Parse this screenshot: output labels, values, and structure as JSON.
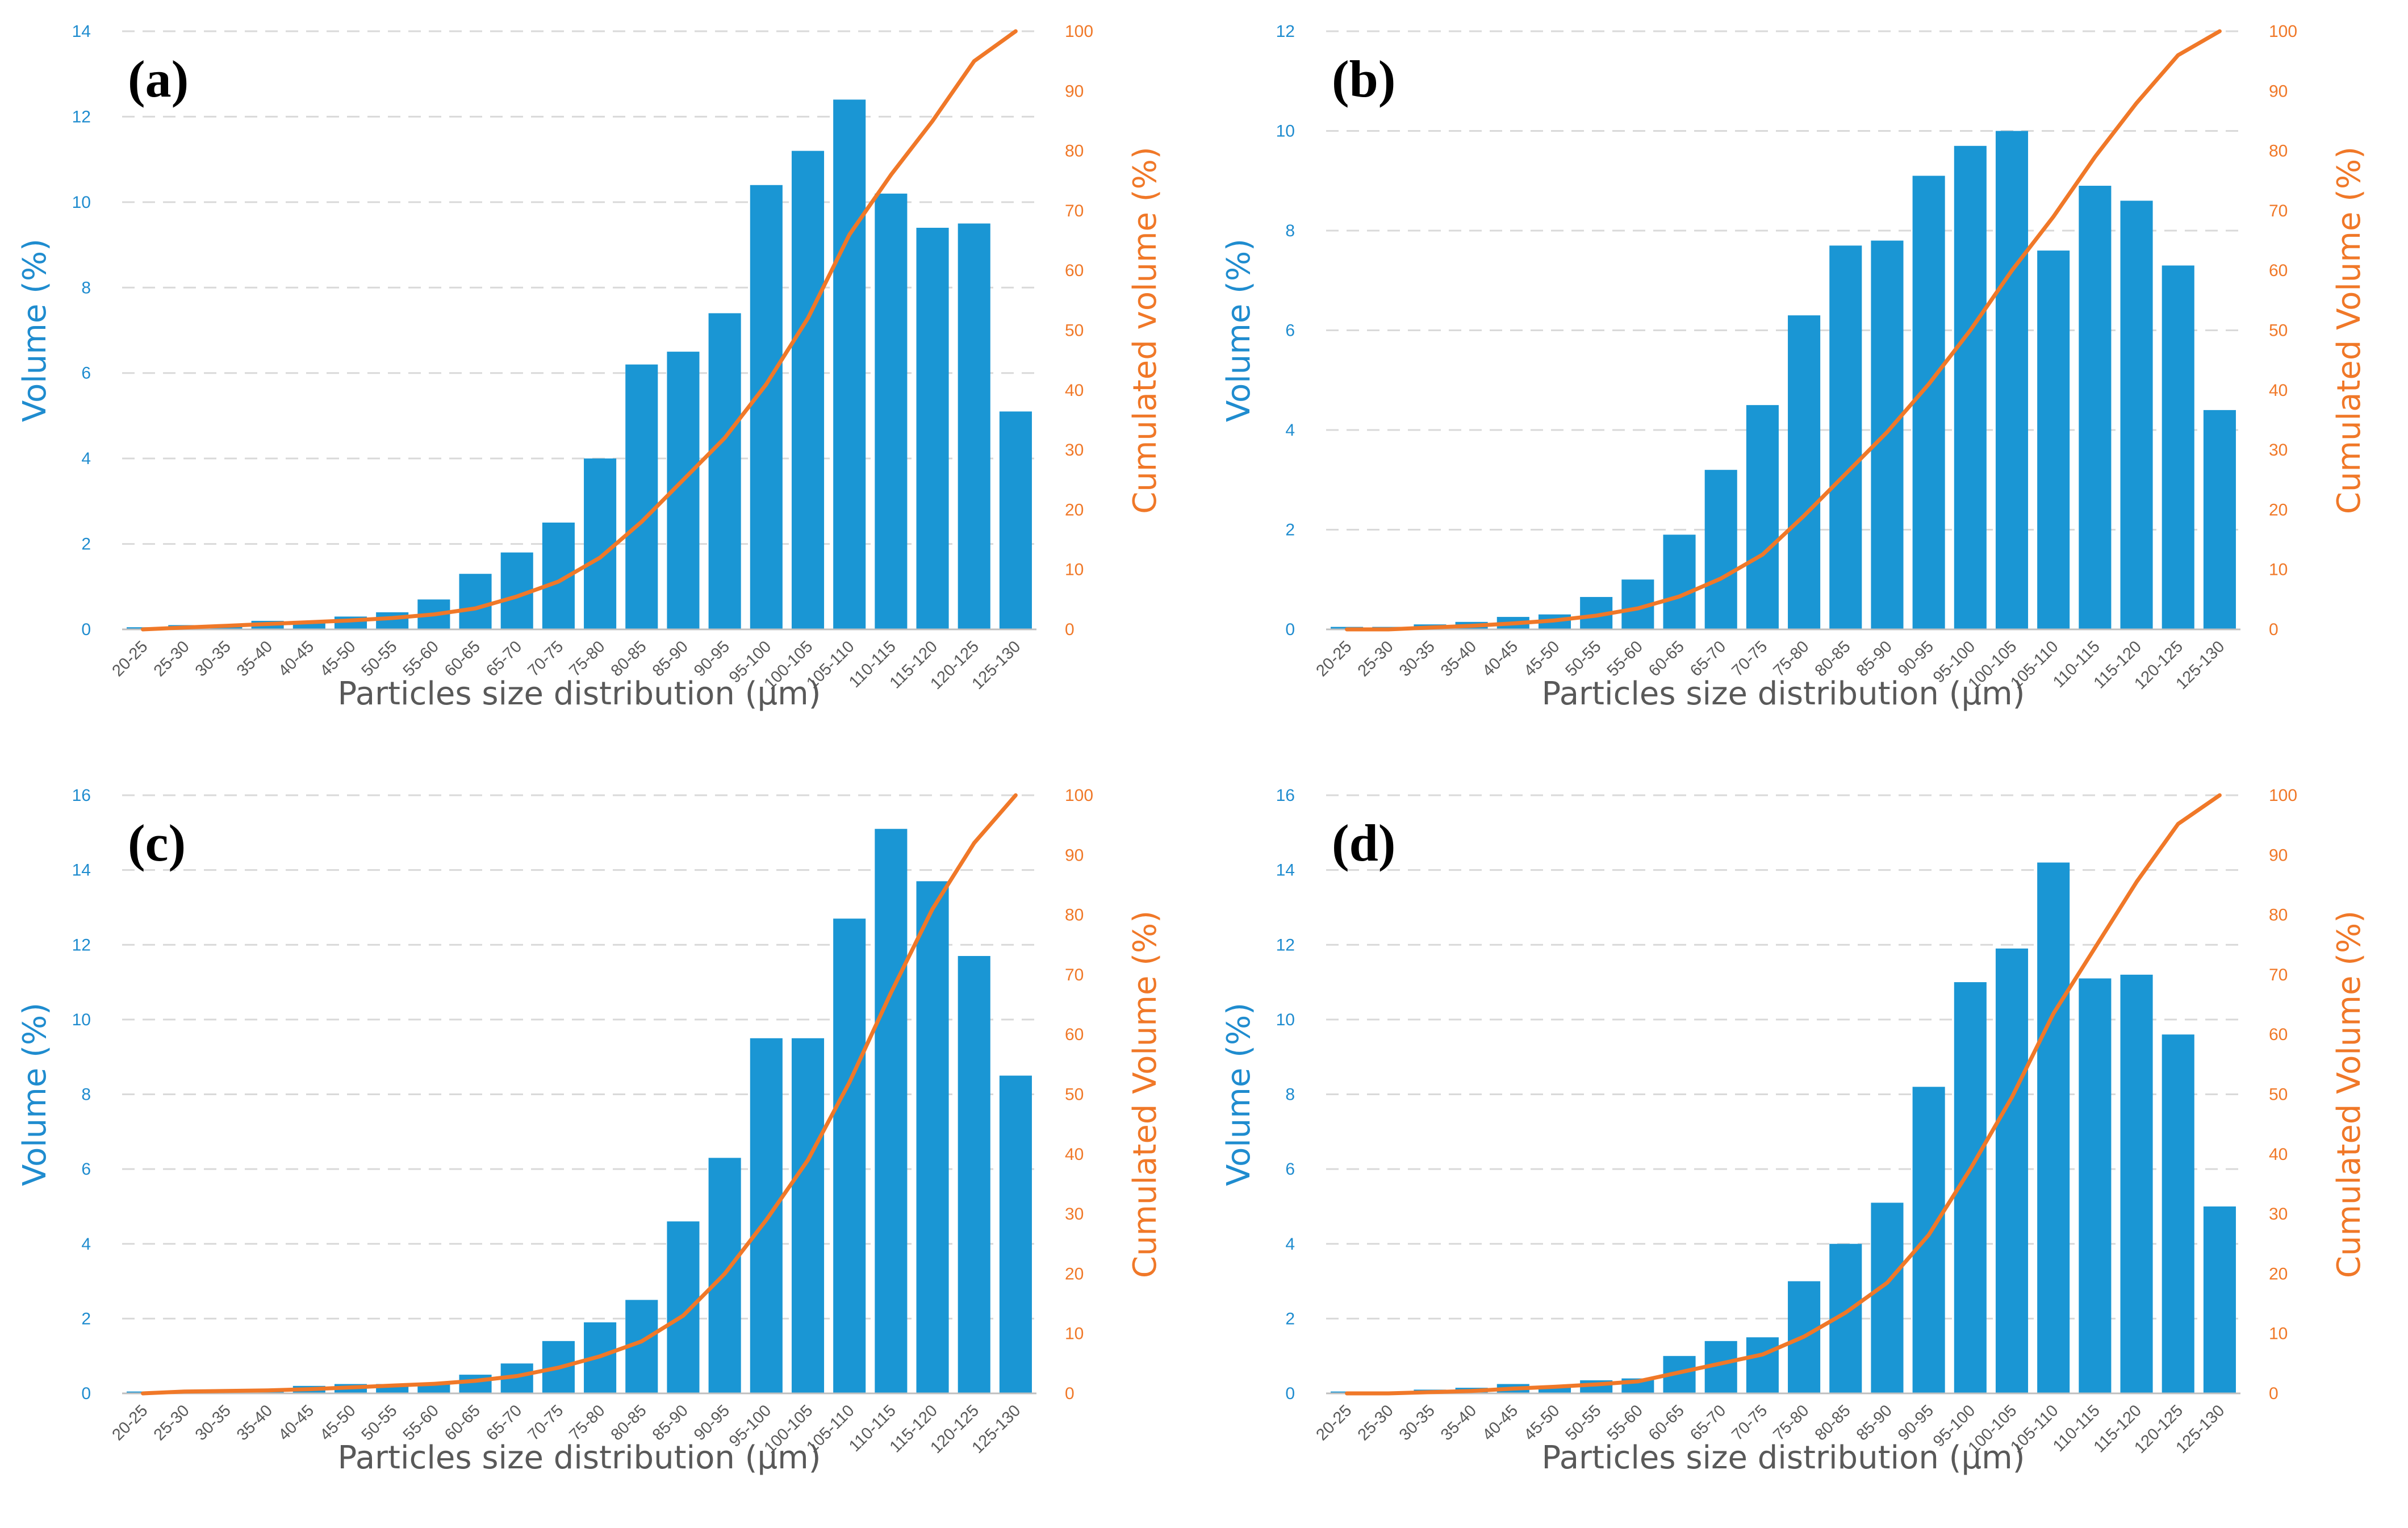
{
  "colors": {
    "bar": "#1a96d4",
    "line": "#f07828",
    "left_axis_text": "#1f8ccf",
    "right_axis_text": "#f07828",
    "grid": "#d9d9d9",
    "x_text": "#595959"
  },
  "chart_data": [
    {
      "type": "bar",
      "panel_label": "(a)",
      "categories": [
        "20-25",
        "25-30",
        "30-35",
        "35-40",
        "40-45",
        "45-50",
        "50-55",
        "55-60",
        "60-65",
        "65-70",
        "70-75",
        "75-80",
        "80-85",
        "85-90",
        "90-95",
        "95-100",
        "100-105",
        "105-110",
        "110-115",
        "115-120",
        "120-125",
        "125-130"
      ],
      "series": [
        {
          "name": "Volume (%)",
          "axis": "left",
          "type": "bar",
          "values": [
            0.05,
            0.1,
            0.1,
            0.2,
            0.2,
            0.3,
            0.4,
            0.7,
            1.3,
            1.8,
            2.5,
            4.0,
            6.2,
            6.5,
            7.4,
            10.4,
            11.2,
            12.4,
            10.2,
            9.4,
            9.5,
            5.1
          ]
        },
        {
          "name": "Cumulated volume (%)",
          "axis": "right",
          "type": "line",
          "values": [
            0,
            0.3,
            0.6,
            0.9,
            1.2,
            1.5,
            1.9,
            2.5,
            3.5,
            5.5,
            8,
            12,
            18,
            25,
            32,
            41,
            52,
            66,
            76,
            85,
            95,
            100
          ]
        }
      ],
      "xlabel": "Particles size distribution (μm)",
      "ylabel": "Volume (%)",
      "y2label": "Cumulated volume (%)",
      "ylim": [
        0,
        14
      ],
      "yticks": [
        "0",
        "2",
        "4",
        "6",
        "8",
        "10",
        "12",
        "14"
      ],
      "y2lim": [
        0,
        100
      ],
      "y2ticks": [
        "0",
        "10",
        "20",
        "30",
        "40",
        "50",
        "60",
        "70",
        "80",
        "90",
        "100"
      ],
      "grid": true
    },
    {
      "type": "bar",
      "panel_label": "(b)",
      "categories": [
        "20-25",
        "25-30",
        "30-35",
        "35-40",
        "40-45",
        "45-50",
        "50-55",
        "55-60",
        "60-65",
        "65-70",
        "70-75",
        "75-80",
        "80-85",
        "85-90",
        "90-95",
        "95-100",
        "100-105",
        "105-110",
        "110-115",
        "115-120",
        "120-125",
        "125-130"
      ],
      "series": [
        {
          "name": "Volume (%)",
          "axis": "left",
          "type": "bar",
          "values": [
            0.05,
            0.05,
            0.1,
            0.15,
            0.25,
            0.3,
            0.65,
            1.0,
            1.9,
            3.2,
            4.5,
            6.3,
            7.7,
            7.8,
            9.1,
            9.7,
            10.0,
            7.6,
            8.9,
            8.6,
            7.3,
            4.4
          ]
        },
        {
          "name": "Cumulated Volume (%)",
          "axis": "right",
          "type": "line",
          "values": [
            0,
            0,
            0.3,
            0.6,
            1.0,
            1.5,
            2.3,
            3.5,
            5.5,
            8.5,
            12.5,
            19,
            26,
            33,
            41,
            50,
            60,
            69,
            79,
            88,
            96,
            100
          ]
        }
      ],
      "xlabel": "Particles size distribution (μm)",
      "ylabel": "Volume (%)",
      "y2label": "Cumulated Volume (%)",
      "ylim": [
        0,
        12
      ],
      "yticks": [
        "0",
        "2",
        "4",
        "6",
        "8",
        "10",
        "12"
      ],
      "y2lim": [
        0,
        100
      ],
      "y2ticks": [
        "0",
        "10",
        "20",
        "30",
        "40",
        "50",
        "60",
        "70",
        "80",
        "90",
        "100"
      ],
      "grid": true
    },
    {
      "type": "bar",
      "panel_label": "(c)",
      "categories": [
        "20-25",
        "25-30",
        "30-35",
        "35-40",
        "40-45",
        "45-50",
        "50-55",
        "55-60",
        "60-65",
        "65-70",
        "70-75",
        "75-80",
        "80-85",
        "85-90",
        "90-95",
        "95-100",
        "100-105",
        "105-110",
        "110-115",
        "115-120",
        "120-125",
        "125-130"
      ],
      "series": [
        {
          "name": "Volume (%)",
          "axis": "left",
          "type": "bar",
          "values": [
            0.05,
            0.05,
            0.1,
            0.1,
            0.2,
            0.25,
            0.25,
            0.25,
            0.5,
            0.8,
            1.4,
            1.9,
            2.5,
            4.6,
            6.3,
            9.5,
            9.5,
            12.7,
            15.1,
            13.7,
            11.7,
            8.5
          ]
        },
        {
          "name": "Cumulated Volume (%)",
          "axis": "right",
          "type": "line",
          "values": [
            0,
            0.3,
            0.4,
            0.5,
            0.7,
            1.0,
            1.3,
            1.6,
            2.1,
            2.9,
            4.3,
            6.2,
            8.7,
            13,
            20,
            29,
            39,
            52,
            67,
            81,
            92,
            100
          ]
        }
      ],
      "xlabel": "Particles size distribution (μm)",
      "ylabel": "Volume (%)",
      "y2label": "Cumulated Volume (%)",
      "ylim": [
        0,
        16
      ],
      "yticks": [
        "0",
        "2",
        "4",
        "6",
        "8",
        "10",
        "12",
        "14",
        "16"
      ],
      "y2lim": [
        0,
        100
      ],
      "y2ticks": [
        "0",
        "10",
        "20",
        "30",
        "40",
        "50",
        "60",
        "70",
        "80",
        "90",
        "100"
      ],
      "grid": true
    },
    {
      "type": "bar",
      "panel_label": "(d)",
      "categories": [
        "20-25",
        "25-30",
        "30-35",
        "35-40",
        "40-45",
        "45-50",
        "50-55",
        "55-60",
        "60-65",
        "65-70",
        "70-75",
        "75-80",
        "80-85",
        "85-90",
        "90-95",
        "95-100",
        "100-105",
        "105-110",
        "110-115",
        "115-120",
        "120-125",
        "125-130"
      ],
      "series": [
        {
          "name": "Volume (%)",
          "axis": "left",
          "type": "bar",
          "values": [
            0.05,
            0.05,
            0.1,
            0.15,
            0.25,
            0.2,
            0.35,
            0.4,
            1.0,
            1.4,
            1.5,
            3.0,
            4.0,
            5.1,
            8.2,
            11.0,
            11.9,
            14.2,
            11.1,
            11.2,
            9.6,
            5.0
          ]
        },
        {
          "name": "Cumulated Volume (%)",
          "axis": "right",
          "type": "line",
          "values": [
            0,
            0,
            0.2,
            0.4,
            0.8,
            1.1,
            1.5,
            2.0,
            3.5,
            5.0,
            6.5,
            9.5,
            13.5,
            18.5,
            26.5,
            37.5,
            49.5,
            63.5,
            74.5,
            85.5,
            95.2,
            100
          ]
        }
      ],
      "xlabel": "Particles size distribution (μm)",
      "ylabel": "Volume (%)",
      "y2label": "Cumulated Volume (%)",
      "ylim": [
        0,
        16
      ],
      "yticks": [
        "0",
        "2",
        "4",
        "6",
        "8",
        "10",
        "12",
        "14",
        "16"
      ],
      "y2lim": [
        0,
        100
      ],
      "y2ticks": [
        "0",
        "10",
        "20",
        "30",
        "40",
        "50",
        "60",
        "70",
        "80",
        "90",
        "100"
      ],
      "grid": true
    }
  ]
}
